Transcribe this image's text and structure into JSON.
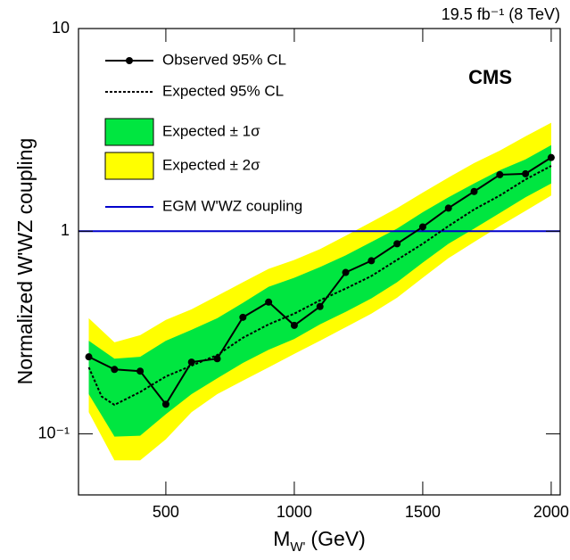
{
  "chart_data": {
    "type": "limit",
    "annotation": "19.5 fb⁻¹ (8 TeV)",
    "label": "CMS",
    "y_label": "Normalized W'WZ coupling",
    "x_label": "M",
    "x_label_sub": "W'",
    "x_label_unit": "(GeV)",
    "xlim": [
      160,
      2035
    ],
    "ylim": [
      0.05,
      10
    ],
    "log_y": true,
    "xticks": [
      500,
      1000,
      1500,
      2000
    ],
    "yticks": [
      {
        "value": 0.1,
        "label": "10⁻¹"
      },
      1,
      10
    ],
    "series": [
      {
        "name": "Observed 95% CL",
        "color": "#000000",
        "style": "line-markers",
        "x": [
          200,
          300,
          400,
          500,
          600,
          700,
          800,
          900,
          1000,
          1100,
          1200,
          1300,
          1400,
          1500,
          1600,
          1700,
          1800,
          1900,
          2000
        ],
        "values": [
          0.24,
          0.208,
          0.204,
          0.14,
          0.226,
          0.235,
          0.376,
          0.447,
          0.343,
          0.425,
          0.626,
          0.715,
          0.867,
          1.05,
          1.3,
          1.57,
          1.9,
          1.92,
          2.31
        ]
      },
      {
        "name": "Expected 95% CL",
        "color": "#000000",
        "style": "dashed",
        "x": [
          200,
          250,
          300,
          400,
          500,
          600,
          700,
          800,
          900,
          1000,
          1100,
          1200,
          1300,
          1400,
          1500,
          1600,
          1700,
          1800,
          1900,
          2000
        ],
        "values": [
          0.213,
          0.153,
          0.139,
          0.161,
          0.192,
          0.217,
          0.245,
          0.298,
          0.347,
          0.392,
          0.456,
          0.521,
          0.601,
          0.722,
          0.867,
          1.06,
          1.28,
          1.5,
          1.8,
          2.1
        ]
      }
    ],
    "bands": [
      {
        "name": "Expected ± 1σ",
        "color": "#00e640",
        "x": [
          200,
          300,
          400,
          500,
          600,
          700,
          800,
          900,
          1000,
          1100,
          1200,
          1300,
          1400,
          1500,
          1600,
          1700,
          1800,
          1900,
          2000
        ],
        "lower": [
          0.157,
          0.097,
          0.098,
          0.125,
          0.157,
          0.188,
          0.224,
          0.26,
          0.294,
          0.347,
          0.4,
          0.466,
          0.56,
          0.7,
          0.867,
          1.03,
          1.23,
          1.47,
          1.72
        ],
        "upper": [
          0.288,
          0.235,
          0.24,
          0.288,
          0.326,
          0.372,
          0.443,
          0.532,
          0.589,
          0.665,
          0.76,
          0.885,
          1.03,
          1.24,
          1.47,
          1.72,
          2.0,
          2.26,
          2.66
        ]
      },
      {
        "name": "Expected ± 2σ",
        "color": "#ffff00",
        "x": [
          200,
          300,
          400,
          500,
          600,
          700,
          800,
          900,
          1000,
          1100,
          1200,
          1300,
          1400,
          1500,
          1600,
          1700,
          1800,
          1900,
          2000
        ],
        "lower": [
          0.128,
          0.074,
          0.074,
          0.094,
          0.128,
          0.157,
          0.183,
          0.213,
          0.248,
          0.288,
          0.336,
          0.392,
          0.47,
          0.589,
          0.736,
          0.885,
          1.06,
          1.26,
          1.5
        ],
        "upper": [
          0.372,
          0.283,
          0.307,
          0.365,
          0.412,
          0.48,
          0.56,
          0.652,
          0.722,
          0.816,
          0.95,
          1.11,
          1.3,
          1.55,
          1.84,
          2.17,
          2.5,
          2.94,
          3.43
        ]
      }
    ],
    "reference": {
      "name": "EGM W'WZ coupling",
      "value": 1,
      "color": "#0000cc"
    }
  }
}
